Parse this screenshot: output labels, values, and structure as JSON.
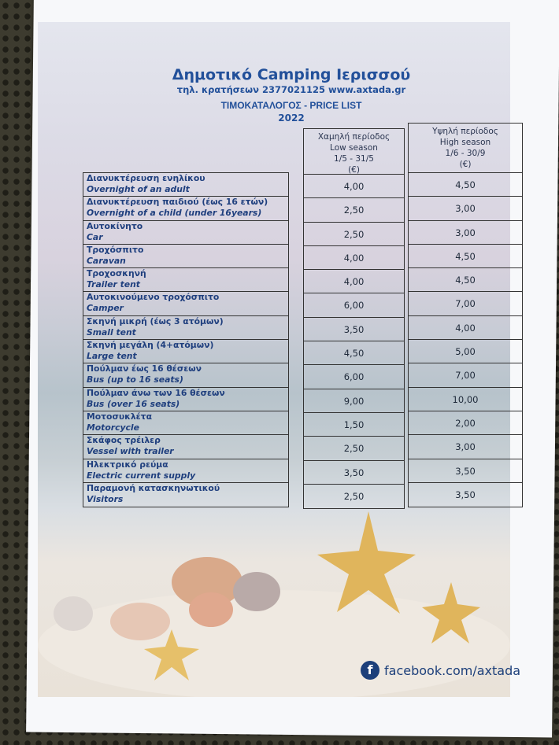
{
  "header": {
    "title": "Δημοτικό Camping Ιερισσού",
    "contact": "τηλ. κρατήσεων 2377021125 www.axtada.gr",
    "price_list": "ΤΙΜΟΚΑΤΑΛΟΓΟΣ - PRICE LIST",
    "year": "2022"
  },
  "columns": {
    "low": {
      "gr": "Χαμηλή περίοδος",
      "en": "Low season",
      "dates": "1/5 - 31/5",
      "unit": "(€)"
    },
    "high": {
      "gr": "Υψηλή περίοδος",
      "en": "High season",
      "dates": "1/6 - 30/9",
      "unit": "(€)"
    }
  },
  "rows": [
    {
      "gr": "Διανυκτέρευση ενηλίκου",
      "en": "Overnight of an adult",
      "low": "4,00",
      "high": "4,50"
    },
    {
      "gr": "Διανυκτέρευση παιδιού (έως 16 ετών)",
      "en": "Overnight of a child (under 16years)",
      "low": "2,50",
      "high": "3,00"
    },
    {
      "gr": "Αυτοκίνητο",
      "en": "Car",
      "low": "2,50",
      "high": "3,00"
    },
    {
      "gr": "Τροχόσπιτο",
      "en": "Caravan",
      "low": "4,00",
      "high": "4,50"
    },
    {
      "gr": "Τροχοσκηνή",
      "en": "Trailer tent",
      "low": "4,00",
      "high": "4,50"
    },
    {
      "gr": "Αυτοκινούμενο τροχόσπιτο",
      "en": "Camper",
      "low": "6,00",
      "high": "7,00"
    },
    {
      "gr": "Σκηνή μικρή (έως 3 ατόμων)",
      "en": "Small tent",
      "low": "3,50",
      "high": "4,00"
    },
    {
      "gr": "Σκηνή μεγάλη (4+ατόμων)",
      "en": "Large tent",
      "low": "4,50",
      "high": "5,00"
    },
    {
      "gr": "Πούλμαν έως 16 θέσεων",
      "en": "Bus (up to 16 seats)",
      "low": "6,00",
      "high": "7,00"
    },
    {
      "gr": "Πούλμαν άνω των 16 θέσεων",
      "en": "Bus (over 16 seats)",
      "low": "9,00",
      "high": "10,00"
    },
    {
      "gr": "Μοτοσυκλέτα",
      "en": "Motorcycle",
      "low": "1,50",
      "high": "2,00"
    },
    {
      "gr": "Σκάφος τρέιλερ",
      "en": "Vessel with trailer",
      "low": "2,50",
      "high": "3,00"
    },
    {
      "gr": "Ηλεκτρικό ρεύμα",
      "en": "Electric current supply",
      "low": "3,50",
      "high": "3,50"
    },
    {
      "gr": "Παραμονή κατασκηνωτικού",
      "en": "Visitors",
      "low": "2,50",
      "high": "3,50"
    }
  ],
  "footer": {
    "facebook": "facebook.com/axtada",
    "icon": "facebook-icon"
  },
  "colors": {
    "title": "#22509a",
    "text": "#1f3f7e"
  }
}
